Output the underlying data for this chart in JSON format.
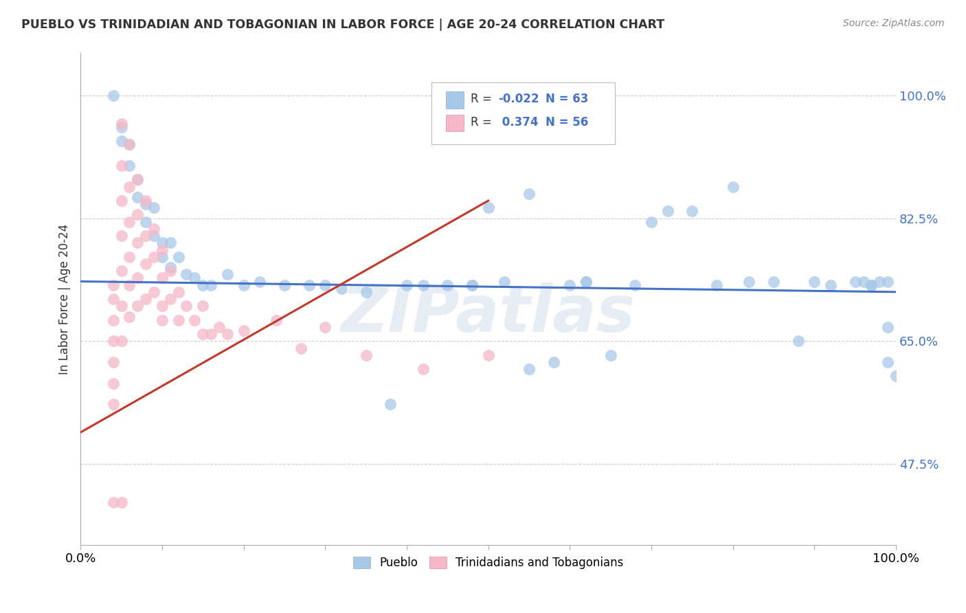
{
  "title": "PUEBLO VS TRINIDADIAN AND TOBAGONIAN IN LABOR FORCE | AGE 20-24 CORRELATION CHART",
  "source": "Source: ZipAtlas.com",
  "ylabel": "In Labor Force | Age 20-24",
  "watermark": "ZIPatlas",
  "r_pueblo": -0.022,
  "n_pueblo": 63,
  "r_trini": 0.374,
  "n_trini": 56,
  "color_pueblo": "#a8c8e8",
  "color_trini": "#f5b8c8",
  "line_color_pueblo": "#4472c4",
  "line_color_trini": "#c0392b",
  "xlim": [
    0.0,
    1.0
  ],
  "ylim": [
    0.36,
    1.06
  ],
  "ytick_positions": [
    0.475,
    0.65,
    0.825,
    1.0
  ],
  "ytick_labels": [
    "47.5%",
    "65.0%",
    "82.5%",
    "100.0%"
  ],
  "pueblo_x": [
    0.04,
    0.05,
    0.05,
    0.06,
    0.06,
    0.07,
    0.07,
    0.08,
    0.08,
    0.09,
    0.09,
    0.1,
    0.1,
    0.11,
    0.11,
    0.12,
    0.13,
    0.14,
    0.15,
    0.16,
    0.18,
    0.2,
    0.22,
    0.25,
    0.28,
    0.3,
    0.32,
    0.35,
    0.38,
    0.4,
    0.42,
    0.45,
    0.48,
    0.5,
    0.52,
    0.55,
    0.58,
    0.6,
    0.62,
    0.65,
    0.48,
    0.55,
    0.62,
    0.68,
    0.7,
    0.72,
    0.75,
    0.78,
    0.8,
    0.82,
    0.85,
    0.88,
    0.9,
    0.92,
    0.95,
    0.96,
    0.97,
    0.97,
    0.98,
    0.99,
    0.99,
    0.99,
    1.0
  ],
  "pueblo_y": [
    1.0,
    0.955,
    0.935,
    0.93,
    0.9,
    0.88,
    0.855,
    0.845,
    0.82,
    0.84,
    0.8,
    0.79,
    0.77,
    0.79,
    0.755,
    0.77,
    0.745,
    0.74,
    0.73,
    0.73,
    0.745,
    0.73,
    0.735,
    0.73,
    0.73,
    0.73,
    0.725,
    0.72,
    0.56,
    0.73,
    0.73,
    0.73,
    0.73,
    0.84,
    0.735,
    0.61,
    0.62,
    0.73,
    0.735,
    0.63,
    0.73,
    0.86,
    0.735,
    0.73,
    0.82,
    0.835,
    0.835,
    0.73,
    0.87,
    0.735,
    0.735,
    0.65,
    0.735,
    0.73,
    0.735,
    0.735,
    0.73,
    0.73,
    0.735,
    0.735,
    0.67,
    0.62,
    0.6
  ],
  "trini_x": [
    0.04,
    0.04,
    0.04,
    0.04,
    0.04,
    0.04,
    0.04,
    0.04,
    0.05,
    0.05,
    0.05,
    0.05,
    0.05,
    0.05,
    0.05,
    0.05,
    0.06,
    0.06,
    0.06,
    0.06,
    0.06,
    0.06,
    0.07,
    0.07,
    0.07,
    0.07,
    0.07,
    0.08,
    0.08,
    0.08,
    0.08,
    0.09,
    0.09,
    0.09,
    0.1,
    0.1,
    0.1,
    0.1,
    0.11,
    0.11,
    0.12,
    0.12,
    0.13,
    0.14,
    0.15,
    0.15,
    0.16,
    0.17,
    0.18,
    0.2,
    0.24,
    0.27,
    0.3,
    0.35,
    0.42,
    0.5
  ],
  "trini_y": [
    0.73,
    0.71,
    0.68,
    0.65,
    0.62,
    0.59,
    0.56,
    0.42,
    0.96,
    0.9,
    0.85,
    0.8,
    0.75,
    0.7,
    0.65,
    0.42,
    0.93,
    0.87,
    0.82,
    0.77,
    0.73,
    0.685,
    0.88,
    0.83,
    0.79,
    0.74,
    0.7,
    0.85,
    0.8,
    0.76,
    0.71,
    0.81,
    0.77,
    0.72,
    0.78,
    0.74,
    0.7,
    0.68,
    0.75,
    0.71,
    0.72,
    0.68,
    0.7,
    0.68,
    0.7,
    0.66,
    0.66,
    0.67,
    0.66,
    0.665,
    0.68,
    0.64,
    0.67,
    0.63,
    0.61,
    0.63
  ],
  "pueblo_trend_x": [
    0.0,
    1.0
  ],
  "pueblo_trend_y": [
    0.735,
    0.72
  ],
  "trini_trend_x": [
    0.0,
    0.5
  ],
  "trini_trend_y": [
    0.52,
    0.85
  ]
}
